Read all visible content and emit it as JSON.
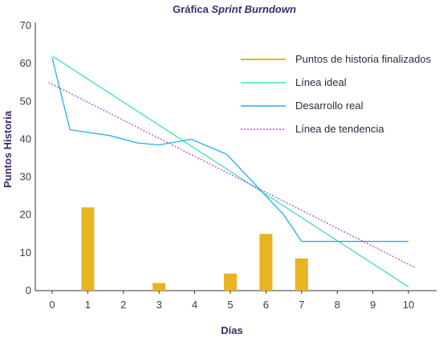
{
  "chart_data": {
    "type": "bar+line",
    "title_prefix": "Gráfica ",
    "title_italic": "Sprint Burndown",
    "xlabel": "Días",
    "ylabel": "Puntos Historia",
    "x_ticks": [
      "0",
      "1",
      "2",
      "3",
      "4",
      "5",
      "6",
      "7",
      "8",
      "9",
      "10"
    ],
    "y_ticks": [
      "0",
      "10",
      "20",
      "30",
      "40",
      "50",
      "60",
      "70"
    ],
    "xlim": [
      -0.5,
      10.8
    ],
    "ylim": [
      0,
      70
    ],
    "legend_position": "top-right",
    "grid": false,
    "bars": {
      "name": "Puntos de historia finalizados",
      "color": "#e8b422",
      "x": [
        1,
        3,
        5,
        6,
        7
      ],
      "values": [
        22,
        2,
        4.5,
        15,
        8.5
      ]
    },
    "series": [
      {
        "name": "Línea ideal",
        "color": "#3fe0b8",
        "style": "solid",
        "x": [
          0,
          10
        ],
        "values": [
          62,
          1
        ]
      },
      {
        "name": "Desarrollo real",
        "color": "#22aee8",
        "style": "solid",
        "x": [
          0,
          0.5,
          1.6,
          2.4,
          3,
          3.9,
          4.9,
          5.5,
          6,
          6.5,
          7,
          10
        ],
        "values": [
          61.5,
          42.5,
          41,
          39,
          38.5,
          40,
          36,
          30,
          25,
          20,
          13,
          13
        ]
      },
      {
        "name": "Línea de tendencia",
        "color": "#b04fd8",
        "style": "dotted",
        "x": [
          -0.1,
          10.2
        ],
        "values": [
          55,
          6
        ]
      }
    ]
  }
}
